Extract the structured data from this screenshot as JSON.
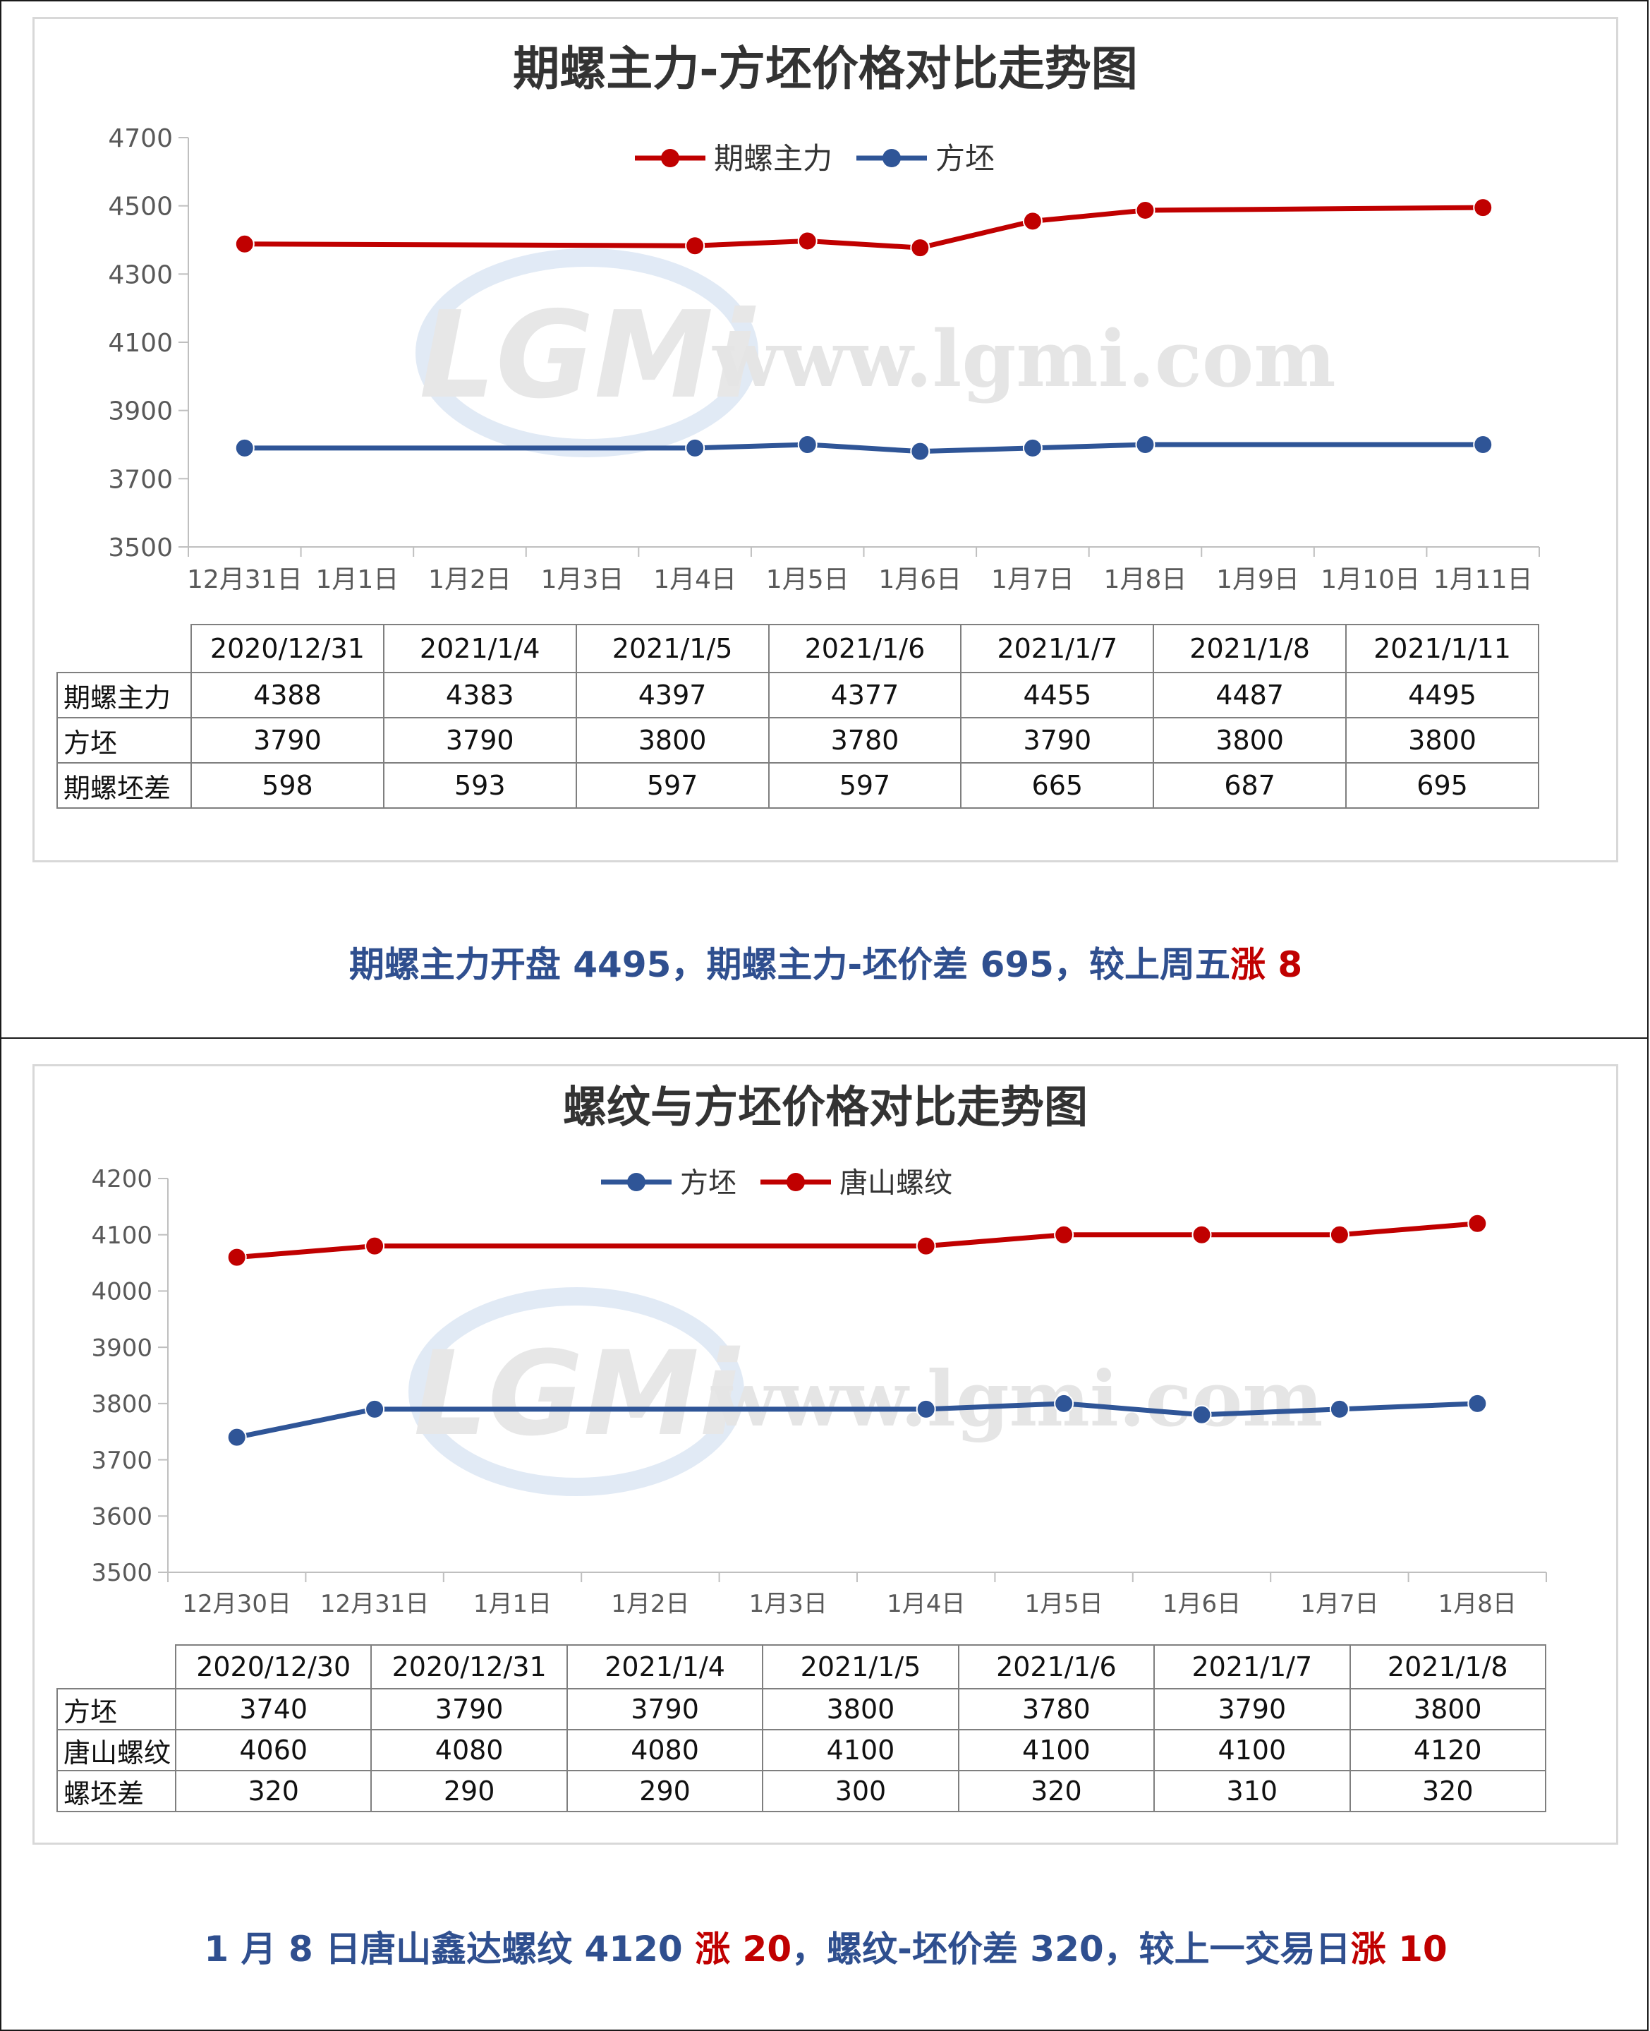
{
  "colors": {
    "red_series": "#c00000",
    "blue_series": "#2f5597",
    "caption": "#2f4f8f",
    "up": "#c00000"
  },
  "watermark": {
    "logo": "LGMi",
    "url": "www.lgmi.com"
  },
  "chart1": {
    "title": "期螺主力-方坯价格对比走势图",
    "legend": [
      "期螺主力",
      "方坯"
    ],
    "table": {
      "headers": [
        "2020/12/31",
        "2021/1/4",
        "2021/1/5",
        "2021/1/6",
        "2021/1/7",
        "2021/1/8",
        "2021/1/11"
      ],
      "rows": [
        {
          "label": "期螺主力",
          "values": [
            "4388",
            "4383",
            "4397",
            "4377",
            "4455",
            "4487",
            "4495"
          ]
        },
        {
          "label": "方坯",
          "values": [
            "3790",
            "3790",
            "3800",
            "3780",
            "3790",
            "3800",
            "3800"
          ]
        },
        {
          "label": "期螺坯差",
          "values": [
            "598",
            "593",
            "597",
            "597",
            "665",
            "687",
            "695"
          ]
        }
      ]
    },
    "caption": {
      "text": "期螺主力开盘 4495，期螺主力-坯价差 695，较上周五",
      "up_label": "涨",
      "up_value": " 8"
    }
  },
  "chart2": {
    "title": "螺纹与方坯价格对比走势图",
    "legend": [
      "方坯",
      "唐山螺纹"
    ],
    "table": {
      "headers": [
        "2020/12/30",
        "2020/12/31",
        "2021/1/4",
        "2021/1/5",
        "2021/1/6",
        "2021/1/7",
        "2021/1/8"
      ],
      "rows": [
        {
          "label": "方坯",
          "values": [
            "3740",
            "3790",
            "3790",
            "3800",
            "3780",
            "3790",
            "3800"
          ]
        },
        {
          "label": "唐山螺纹",
          "values": [
            "4060",
            "4080",
            "4080",
            "4100",
            "4100",
            "4100",
            "4120"
          ]
        },
        {
          "label": "螺坯差",
          "values": [
            "320",
            "290",
            "290",
            "300",
            "320",
            "310",
            "320"
          ]
        }
      ]
    },
    "caption": {
      "text1": "1 月 8 日唐山鑫达螺纹 4120 ",
      "up1_label": "涨",
      "up1_value": " 20",
      "text2": "，螺纹-坯价差 320，较上一交易日",
      "up2_label": "涨",
      "up2_value": " 10"
    }
  },
  "chart_data": [
    {
      "type": "line",
      "title": "期螺主力-方坯价格对比走势图",
      "categories": [
        "12月31日",
        "1月1日",
        "1月2日",
        "1月3日",
        "1月4日",
        "1月5日",
        "1月6日",
        "1月7日",
        "1月8日",
        "1月9日",
        "1月10日",
        "1月11日"
      ],
      "ylim": [
        3500,
        4700
      ],
      "yticks": [
        3500,
        3700,
        3900,
        4100,
        4300,
        4500,
        4700
      ],
      "grid": false,
      "legend_position": "top",
      "series": [
        {
          "name": "期螺主力",
          "color": "#c00000",
          "points": [
            {
              "x": "12月31日",
              "y": 4388
            },
            {
              "x": "1月4日",
              "y": 4383
            },
            {
              "x": "1月5日",
              "y": 4397
            },
            {
              "x": "1月6日",
              "y": 4377
            },
            {
              "x": "1月7日",
              "y": 4455
            },
            {
              "x": "1月8日",
              "y": 4487
            },
            {
              "x": "1月11日",
              "y": 4495
            }
          ]
        },
        {
          "name": "方坯",
          "color": "#2f5597",
          "points": [
            {
              "x": "12月31日",
              "y": 3790
            },
            {
              "x": "1月4日",
              "y": 3790
            },
            {
              "x": "1月5日",
              "y": 3800
            },
            {
              "x": "1月6日",
              "y": 3780
            },
            {
              "x": "1月7日",
              "y": 3790
            },
            {
              "x": "1月8日",
              "y": 3800
            },
            {
              "x": "1月11日",
              "y": 3800
            }
          ]
        }
      ]
    },
    {
      "type": "line",
      "title": "螺纹与方坯价格对比走势图",
      "categories": [
        "12月30日",
        "12月31日",
        "1月1日",
        "1月2日",
        "1月3日",
        "1月4日",
        "1月5日",
        "1月6日",
        "1月7日",
        "1月8日"
      ],
      "ylim": [
        3500,
        4200
      ],
      "yticks": [
        3500,
        3600,
        3700,
        3800,
        3900,
        4000,
        4100,
        4200
      ],
      "grid": false,
      "legend_position": "top",
      "series": [
        {
          "name": "方坯",
          "color": "#2f5597",
          "points": [
            {
              "x": "12月30日",
              "y": 3740
            },
            {
              "x": "12月31日",
              "y": 3790
            },
            {
              "x": "1月4日",
              "y": 3790
            },
            {
              "x": "1月5日",
              "y": 3800
            },
            {
              "x": "1月6日",
              "y": 3780
            },
            {
              "x": "1月7日",
              "y": 3790
            },
            {
              "x": "1月8日",
              "y": 3800
            }
          ]
        },
        {
          "name": "唐山螺纹",
          "color": "#c00000",
          "points": [
            {
              "x": "12月30日",
              "y": 4060
            },
            {
              "x": "12月31日",
              "y": 4080
            },
            {
              "x": "1月4日",
              "y": 4080
            },
            {
              "x": "1月5日",
              "y": 4100
            },
            {
              "x": "1月6日",
              "y": 4100
            },
            {
              "x": "1月7日",
              "y": 4100
            },
            {
              "x": "1月8日",
              "y": 4120
            }
          ]
        }
      ]
    }
  ]
}
